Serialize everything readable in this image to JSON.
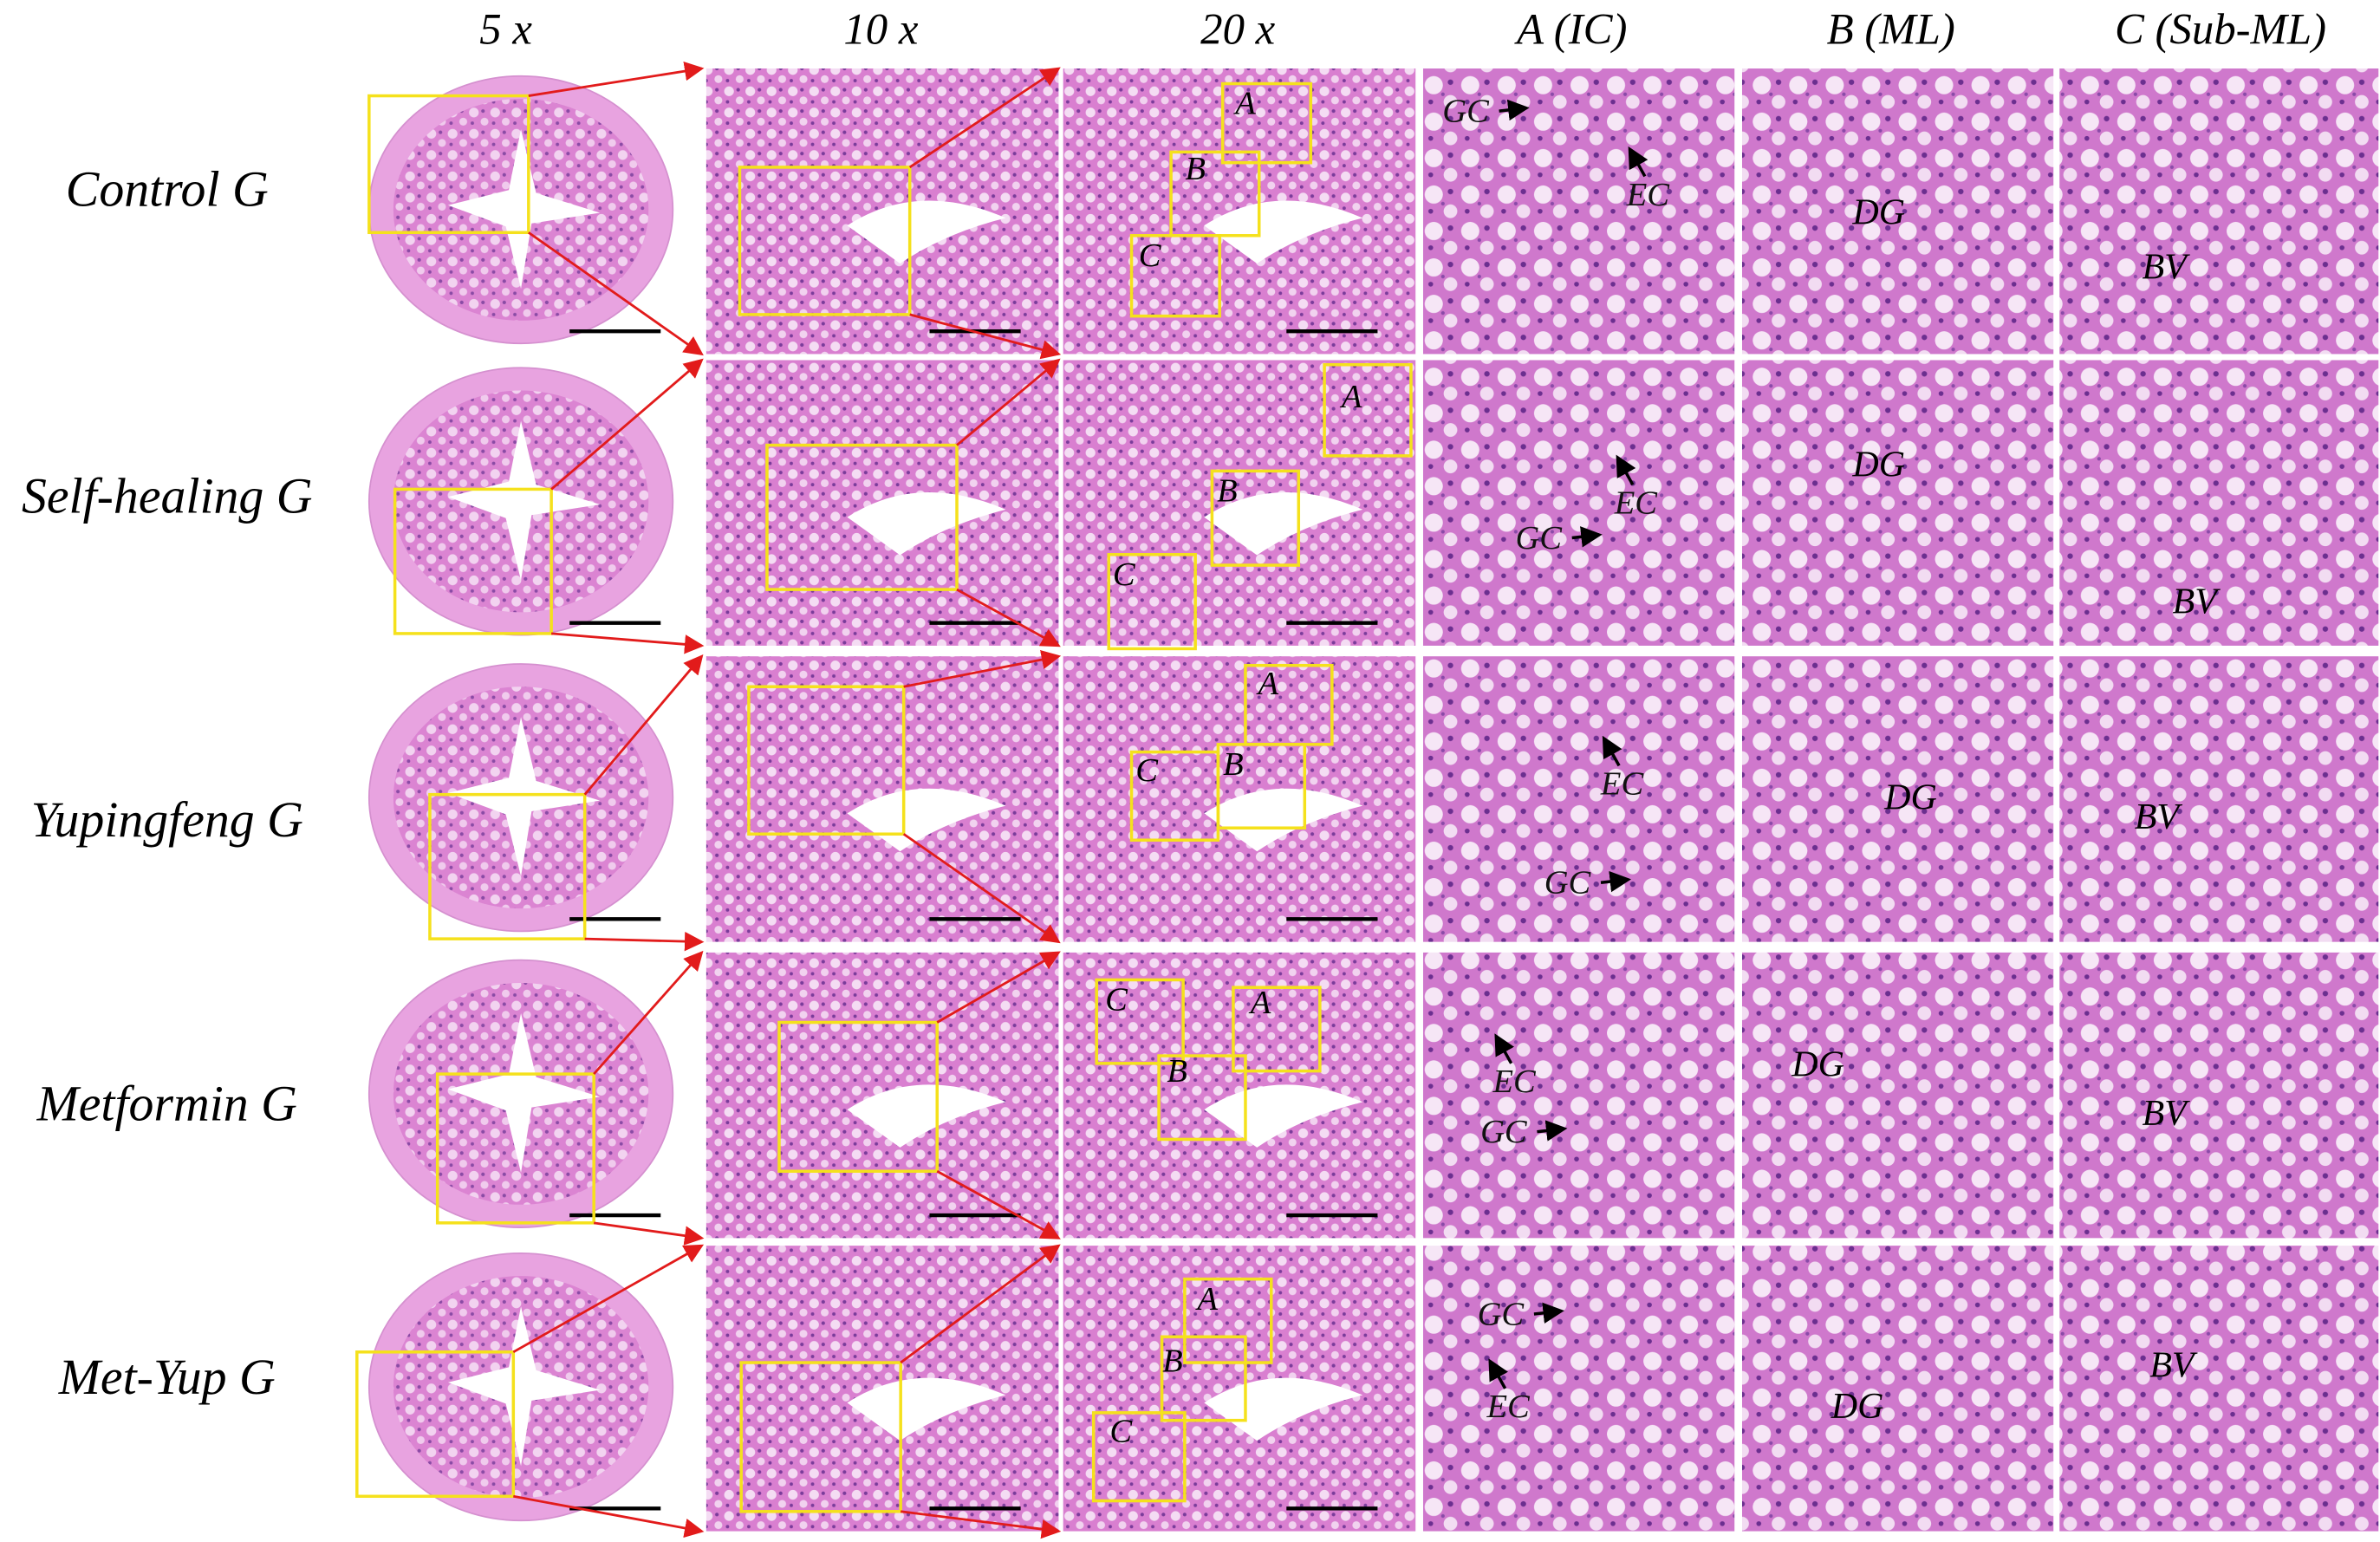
{
  "columns": [
    "5 x",
    "10 x",
    "20 x",
    "A (IC)",
    "B (ML)",
    "C (Sub-ML)"
  ],
  "rows": [
    {
      "label": "Control G",
      "zoom_boxes": [
        "A",
        "B",
        "C"
      ],
      "ic_labels": [
        "GC",
        "EC"
      ],
      "ml_label": "DG",
      "subml_label": "BV"
    },
    {
      "label": "Self-healing G",
      "zoom_boxes": [
        "A",
        "B",
        "C"
      ],
      "ic_labels": [
        "EC",
        "GC"
      ],
      "ml_label": "DG",
      "subml_label": "BV"
    },
    {
      "label": "Yupingfeng G",
      "zoom_boxes": [
        "A",
        "B",
        "C"
      ],
      "ic_labels": [
        "EC",
        "GC"
      ],
      "ml_label": "DG",
      "subml_label": "BV"
    },
    {
      "label": "Metformin G",
      "zoom_boxes": [
        "C",
        "A",
        "B"
      ],
      "ic_labels": [
        "EC",
        "GC"
      ],
      "ml_label": "DG",
      "subml_label": "BV"
    },
    {
      "label": "Met-Yup G",
      "zoom_boxes": [
        "A",
        "B",
        "C"
      ],
      "ic_labels": [
        "GC",
        "EC"
      ],
      "ml_label": "DG",
      "subml_label": "BV"
    }
  ]
}
